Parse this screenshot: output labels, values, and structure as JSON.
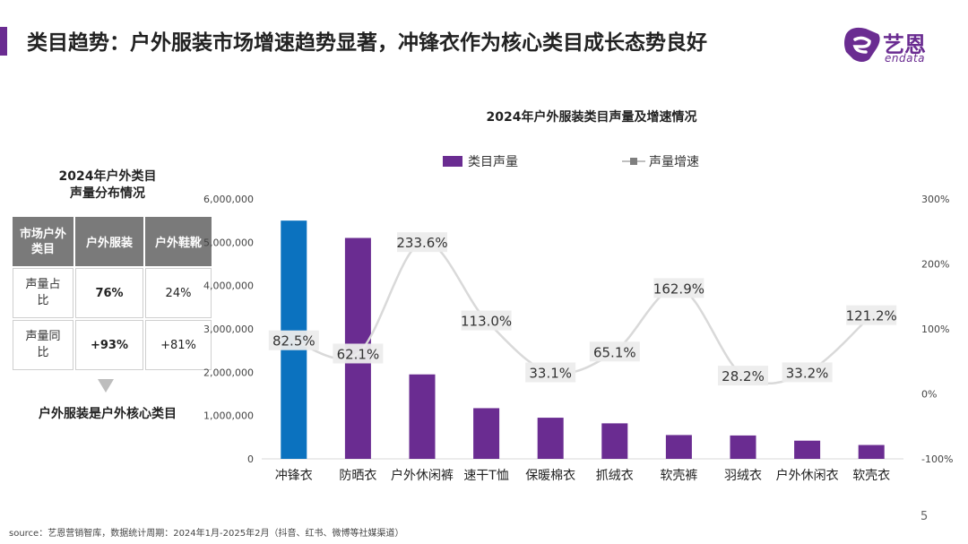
{
  "header": {
    "title": "类目趋势：户外服装市场增速趋势显著，冲锋衣作为核心类目成长态势良好",
    "logo_cn": "艺恩",
    "logo_en": "endata"
  },
  "side_panel": {
    "title_line1": "2024年户外类目",
    "title_line2": "声量分布情况",
    "table": {
      "headers": [
        "市场户外类目",
        "户外服装",
        "户外鞋靴"
      ],
      "rows": [
        [
          "声量占比",
          "76%",
          "24%"
        ],
        [
          "声量同比",
          "+93%",
          "+81%"
        ]
      ]
    },
    "conclusion": "户外服装是户外核心类目"
  },
  "footer": {
    "source": "source：艺恩营销智库，数据统计周期：2024年1月-2025年2月（抖音、红书、微博等社媒渠道）",
    "page": "5"
  },
  "colors": {
    "accent": "#6a2c91",
    "bar_highlight": "#0b72bf",
    "bar": "#6a2c91",
    "line": "#d9d9d9"
  },
  "chart_data": {
    "type": "bar",
    "title": "2024年户外服装类目声量及增速情况",
    "categories": [
      "冲锋衣",
      "防晒衣",
      "户外休闲裤",
      "速干T恤",
      "保暖棉衣",
      "抓绒衣",
      "软壳裤",
      "羽绒衣",
      "户外休闲衣",
      "软壳衣"
    ],
    "series": [
      {
        "name": "类目声量",
        "type": "bar",
        "axis": "left",
        "values": [
          5500000,
          5100000,
          1950000,
          1170000,
          950000,
          820000,
          550000,
          540000,
          420000,
          320000
        ]
      },
      {
        "name": "声量增速",
        "type": "line",
        "axis": "right",
        "values": [
          82.5,
          62.1,
          233.6,
          113.0,
          33.1,
          65.1,
          162.9,
          28.2,
          33.2,
          121.2
        ],
        "labels": [
          "82.5%",
          "62.1%",
          "233.6%",
          "113.0%",
          "33.1%",
          "65.1%",
          "162.9%",
          "28.2%",
          "33.2%",
          "121.2%"
        ]
      }
    ],
    "ylim_left": [
      0,
      6000000
    ],
    "yticks_left": [
      "0",
      "1,000,000",
      "2,000,000",
      "3,000,000",
      "4,000,000",
      "5,000,000",
      "6,000,000"
    ],
    "ylim_right": [
      -100,
      300
    ],
    "yticks_right": [
      "-100%",
      "0%",
      "100%",
      "200%",
      "300%"
    ],
    "legend_position": "top",
    "grid": false
  }
}
